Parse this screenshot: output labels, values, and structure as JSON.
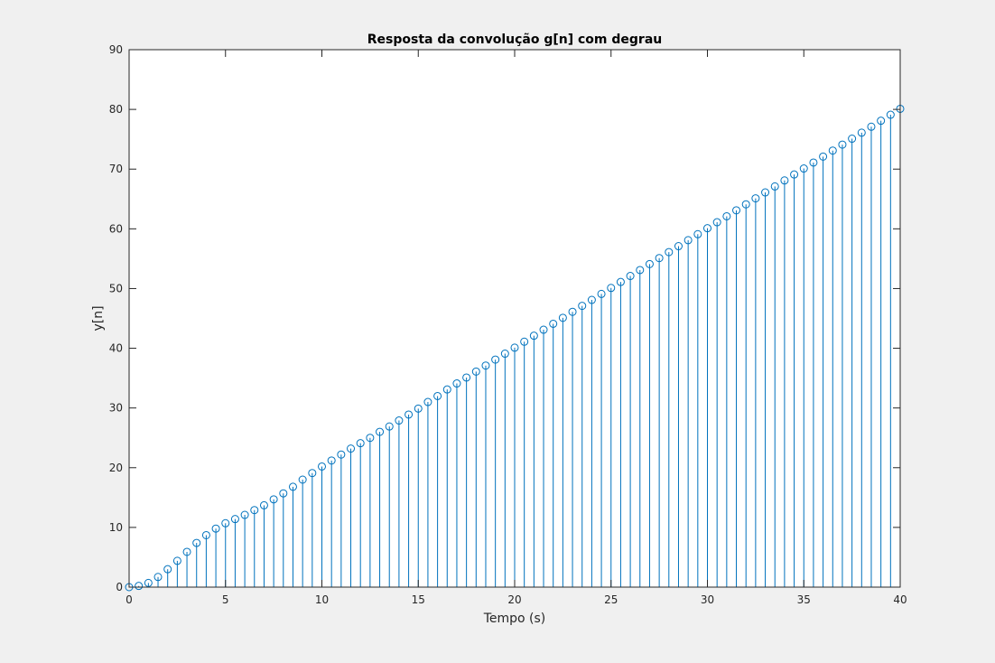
{
  "chart_data": {
    "type": "stem",
    "title": "Resposta da convolução g[n] com degrau",
    "xlabel": "Tempo (s)",
    "ylabel": "y[n]",
    "xlim": [
      0,
      40
    ],
    "ylim": [
      0,
      90
    ],
    "xticks": [
      0,
      5,
      10,
      15,
      20,
      25,
      30,
      35,
      40
    ],
    "yticks": [
      0,
      10,
      20,
      30,
      40,
      50,
      60,
      70,
      80,
      90
    ],
    "grid": false,
    "legend": "none",
    "series_color": "#0072bd",
    "background": "#ffffff",
    "figure_background": "#f0f0f0",
    "series": [
      {
        "x": [
          0,
          0.5,
          1,
          1.5,
          2,
          2.5,
          3,
          3.5,
          4,
          4.5,
          5,
          5.5,
          6,
          6.5,
          7,
          7.5,
          8,
          8.5,
          9,
          9.5,
          10,
          10.5,
          11,
          11.5,
          12,
          12.5,
          13,
          13.5,
          14,
          14.5,
          15,
          15.5,
          16,
          16.5,
          17,
          17.5,
          18,
          18.5,
          19,
          19.5,
          20,
          20.5,
          21,
          21.5,
          22,
          22.5,
          23,
          23.5,
          24,
          24.5,
          25,
          25.5,
          26,
          26.5,
          27,
          27.5,
          28,
          28.5,
          29,
          29.5,
          30,
          30.5,
          31,
          31.5,
          32,
          32.5,
          33,
          33.5,
          34,
          34.5,
          35,
          35.5,
          36,
          36.5,
          37,
          37.5,
          38,
          38.5,
          39,
          39.5,
          40
        ],
        "y": [
          0,
          0.2,
          0.7,
          1.7,
          3.0,
          4.4,
          5.9,
          7.4,
          8.7,
          9.8,
          10.7,
          11.4,
          12.1,
          12.9,
          13.7,
          14.7,
          15.7,
          16.8,
          18.0,
          19.1,
          20.2,
          21.2,
          22.2,
          23.2,
          24.1,
          25.0,
          26.0,
          26.9,
          27.9,
          28.9,
          29.9,
          31.0,
          32.0,
          33.1,
          34.1,
          35.1,
          36.1,
          37.1,
          38.1,
          39.1,
          40.1,
          41.1,
          42.1,
          43.1,
          44.1,
          45.1,
          46.1,
          47.1,
          48.1,
          49.1,
          50.1,
          51.1,
          52.1,
          53.1,
          54.1,
          55.1,
          56.1,
          57.1,
          58.1,
          59.1,
          60.1,
          61.1,
          62.1,
          63.1,
          64.1,
          65.1,
          66.1,
          67.1,
          68.1,
          69.1,
          70.1,
          71.1,
          72.1,
          73.1,
          74.1,
          75.1,
          76.1,
          77.1,
          78.1,
          79.1,
          80.1
        ]
      }
    ]
  }
}
